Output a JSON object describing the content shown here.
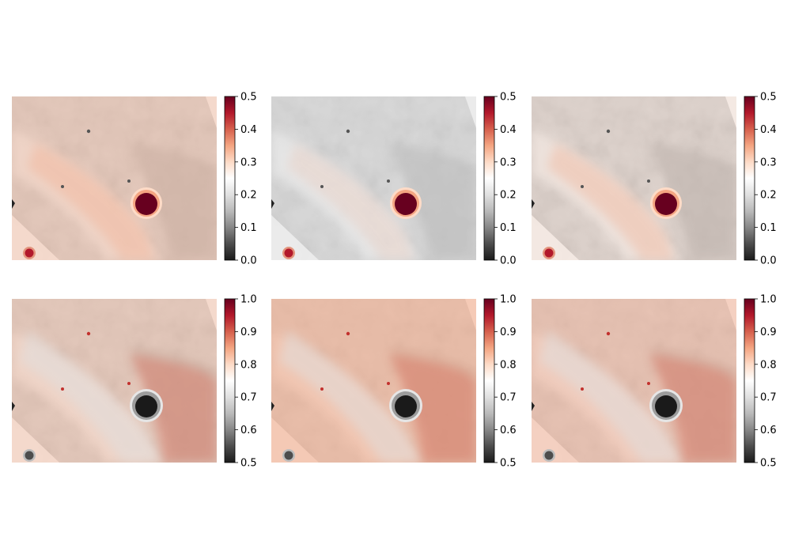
{
  "chart_data": {
    "type": "heatmap",
    "layout": "2x3 grid of image panels, each with a vertical colorbar to its right",
    "colormap": "RdGy_r (black - grey - white - red - dark red)",
    "colormap_stops": [
      "#1a1a1a",
      "#4d4d4d",
      "#878787",
      "#bababa",
      "#e0e0e0",
      "#ffffff",
      "#fddbc7",
      "#f4a582",
      "#d6604d",
      "#b2182b",
      "#67001f"
    ],
    "axes_visible": false,
    "rows": [
      {
        "colorbar": {
          "range": [
            0.0,
            0.5
          ],
          "ticks": [
            "0.0",
            "0.1",
            "0.2",
            "0.3",
            "0.4",
            "0.5"
          ]
        },
        "panels": [
          {
            "tone": "mixed",
            "title": ""
          },
          {
            "tone": "grey",
            "title": ""
          },
          {
            "tone": "mixed-grey",
            "title": ""
          }
        ]
      },
      {
        "colorbar": {
          "range": [
            0.5,
            1.0
          ],
          "ticks": [
            "0.5",
            "0.6",
            "0.7",
            "0.8",
            "0.9",
            "1.0"
          ]
        },
        "panels": [
          {
            "tone": "mixed",
            "title": ""
          },
          {
            "tone": "red",
            "title": ""
          },
          {
            "tone": "mixed-red",
            "title": ""
          }
        ]
      }
    ]
  }
}
